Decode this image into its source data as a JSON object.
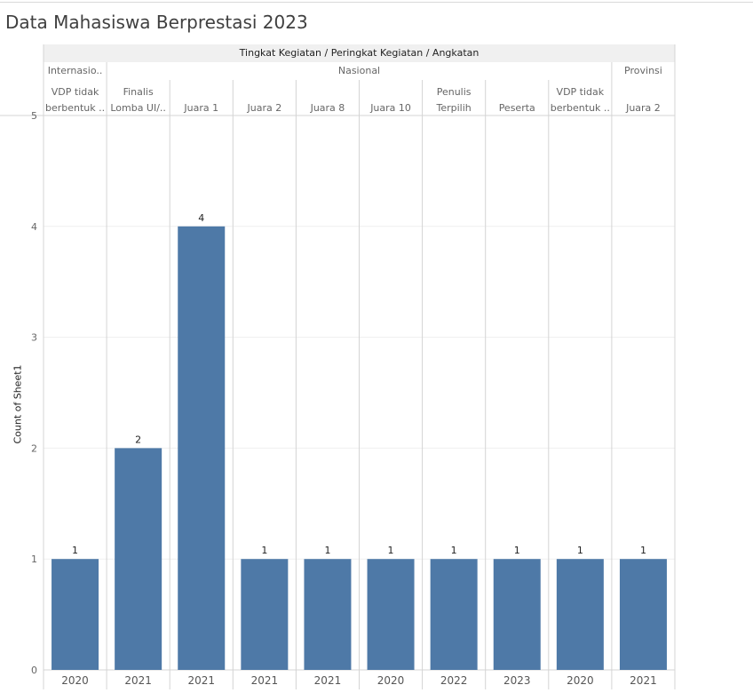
{
  "chart_data": {
    "type": "bar",
    "title": "Data Mahasiswa Berprestasi 2023",
    "header_label": "Tingkat Kegiatan / Peringkat Kegiatan / Angkatan",
    "ylabel": "Count of Sheet1",
    "ylim": [
      0,
      5
    ],
    "yticks": [
      0,
      1,
      2,
      3,
      4,
      5
    ],
    "color": "#4e79a7",
    "groups": [
      {
        "label": "Internasio..",
        "span": 1
      },
      {
        "label": "Nasional",
        "span": 8
      },
      {
        "label": "Provinsi",
        "span": 1
      }
    ],
    "bars": [
      {
        "level": "Internasio..",
        "rank": [
          "VDP tidak",
          "berbentuk .."
        ],
        "year": "2020",
        "value": 1,
        "value_label": "1"
      },
      {
        "level": "Nasional",
        "rank": [
          "Finalis",
          "Lomba UI/.."
        ],
        "year": "2021",
        "value": 2,
        "value_label": "2"
      },
      {
        "level": "Nasional",
        "rank": [
          "Juara 1"
        ],
        "year": "2021",
        "value": 4,
        "value_label": "4"
      },
      {
        "level": "Nasional",
        "rank": [
          "Juara 2"
        ],
        "year": "2021",
        "value": 1,
        "value_label": "1"
      },
      {
        "level": "Nasional",
        "rank": [
          "Juara 8"
        ],
        "year": "2021",
        "value": 1,
        "value_label": "1"
      },
      {
        "level": "Nasional",
        "rank": [
          "Juara 10"
        ],
        "year": "2020",
        "value": 1,
        "value_label": "1"
      },
      {
        "level": "Nasional",
        "rank": [
          "Penulis",
          "Terpilih"
        ],
        "year": "2022",
        "value": 1,
        "value_label": "1"
      },
      {
        "level": "Nasional",
        "rank": [
          "Peserta"
        ],
        "year": "2023",
        "value": 1,
        "value_label": "1"
      },
      {
        "level": "Nasional",
        "rank": [
          "VDP tidak",
          "berbentuk .."
        ],
        "year": "2020",
        "value": 1,
        "value_label": "1"
      },
      {
        "level": "Provinsi",
        "rank": [
          "Juara 2"
        ],
        "year": "2021",
        "value": 1,
        "value_label": "1"
      }
    ]
  }
}
